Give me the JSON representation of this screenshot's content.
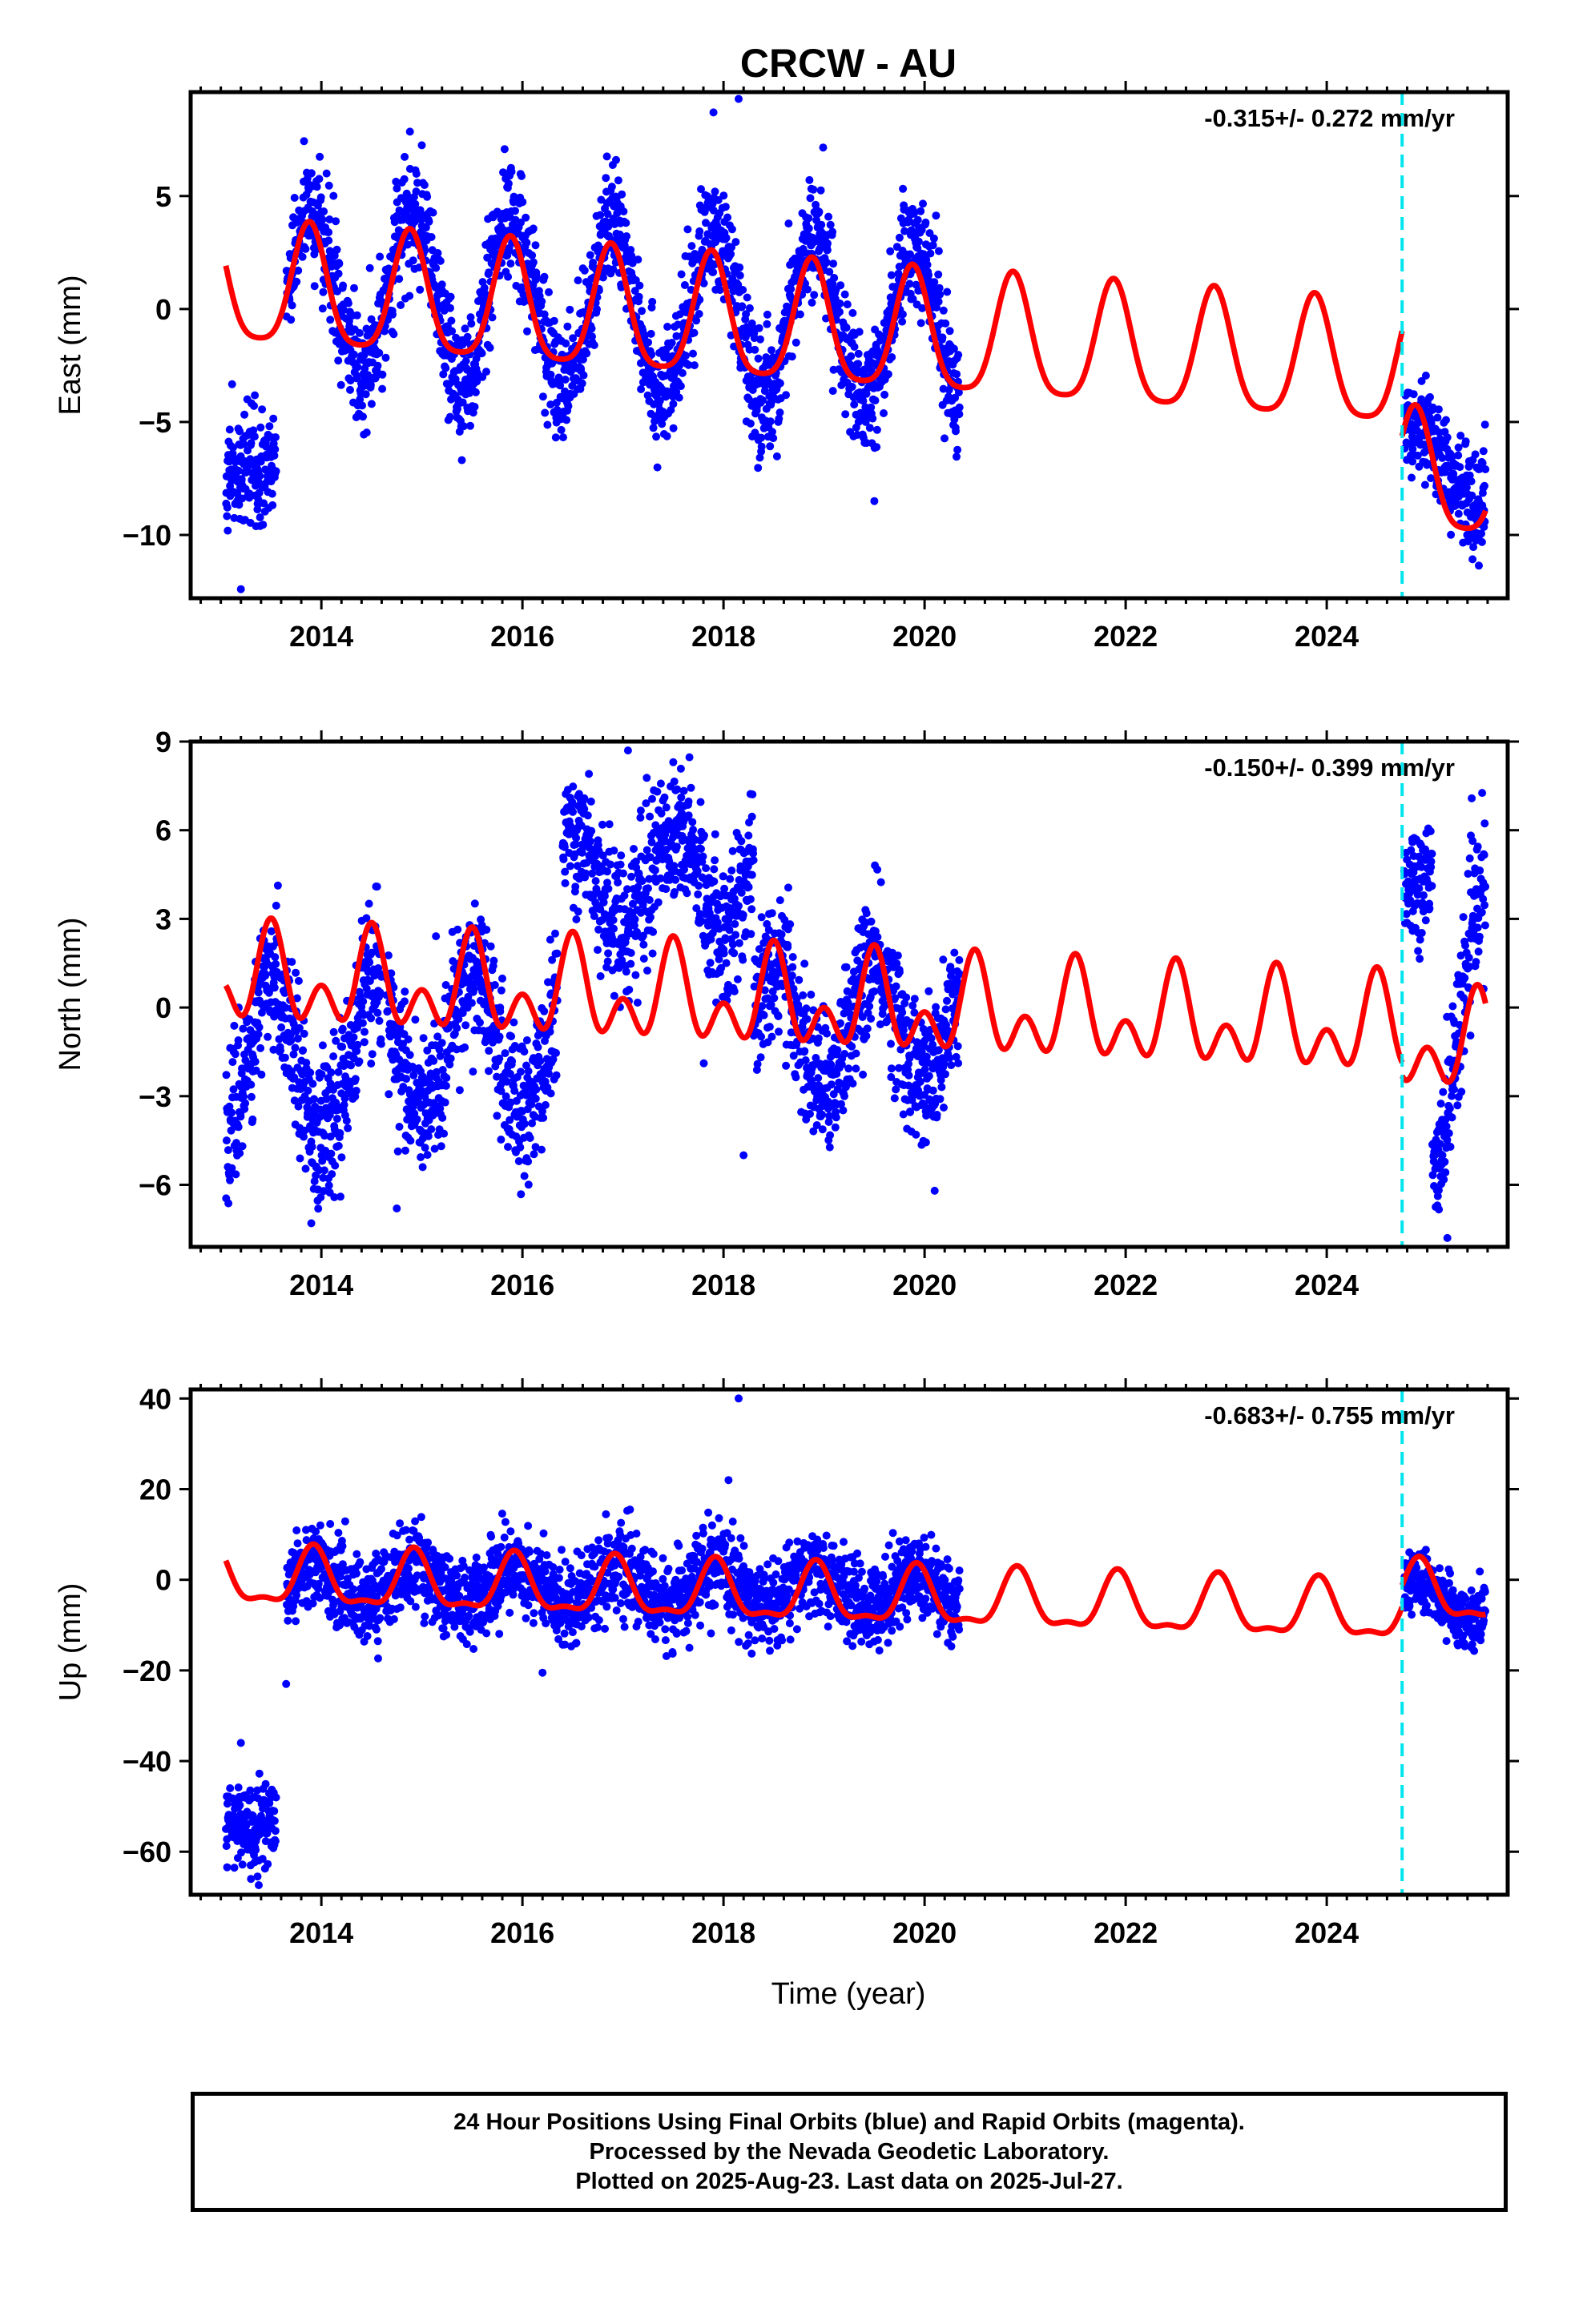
{
  "title": "CRCW - AU",
  "xlabel": "Time (year)",
  "footer": {
    "line1": "24 Hour Positions Using Final Orbits (blue) and Rapid Orbits (magenta).",
    "line2": "Processed by the Nevada Geodetic Laboratory.",
    "line3": "Plotted on 2025-Aug-23. Last data on 2025-Jul-27."
  },
  "colors": {
    "data": "#0000ff",
    "model": "#ff0000",
    "equipment_change": "#00e5ee",
    "frame": "#000000"
  },
  "chart_data": [
    {
      "type": "scatter",
      "component": "East",
      "ylabel": "East (mm)",
      "rate_text": "-0.315+/- 0.272 mm/yr",
      "xlim": [
        2012.7,
        2025.8
      ],
      "ylim": [
        -12.8,
        9.6
      ],
      "xticks": [
        2014,
        2016,
        2018,
        2020,
        2022,
        2024
      ],
      "yticks": [
        -10,
        -5,
        0,
        5
      ],
      "equipment_change_x": 2024.75,
      "data_segments": [
        {
          "x0": 2013.05,
          "x1": 2013.55,
          "mean": -7.2,
          "spread": 1.3,
          "amp": 0.0
        },
        {
          "x0": 2013.65,
          "x1": 2020.35,
          "mean": 0.8,
          "spread": 1.3,
          "amp": 3.6,
          "peak": 0.9,
          "trend": -0.25
        },
        {
          "x0": 2024.77,
          "x1": 2025.58,
          "mean": -5.9,
          "spread": 1.1,
          "amp": 1.3,
          "peak": 0.9,
          "trend": -2.0
        }
      ],
      "model": {
        "segments": [
          {
            "x0": 2013.05,
            "x1": 2024.75,
            "offset": 0.95,
            "trend": -0.315,
            "annual": 2.65,
            "annual_peak": 0.88,
            "semi": 0.55,
            "semi_peak": 0.88
          },
          {
            "x0": 2024.75,
            "x1": 2025.58,
            "offset": -3.7,
            "trend": -0.315,
            "annual": 2.65,
            "annual_peak": 0.88,
            "semi": 0.55,
            "semi_peak": 0.88
          }
        ]
      },
      "outliers": [
        [
          2018.15,
          9.3
        ],
        [
          2017.9,
          8.7
        ],
        [
          2019.5,
          -8.5
        ],
        [
          2013.2,
          -12.4
        ],
        [
          2017.5,
          -4.2
        ],
        [
          2014.5,
          -4.2
        ]
      ]
    },
    {
      "type": "scatter",
      "component": "North",
      "ylabel": "North (mm)",
      "rate_text": "-0.150+/- 0.399 mm/yr",
      "xlim": [
        2012.7,
        2025.8
      ],
      "ylim": [
        -8.1,
        9.0
      ],
      "xticks": [
        2014,
        2016,
        2018,
        2020,
        2022,
        2024
      ],
      "yticks": [
        -6,
        -3,
        0,
        3,
        6,
        9
      ],
      "equipment_change_x": 2024.75,
      "data_segments": [
        {
          "x0": 2013.05,
          "x1": 2014.6,
          "mean": -1.8,
          "spread": 1.2,
          "amp": 2.6,
          "peak": 0.52
        },
        {
          "x0": 2014.65,
          "x1": 2016.35,
          "mean": -1.2,
          "spread": 1.2,
          "amp": 2.4,
          "peak": 0.5
        },
        {
          "x0": 2016.4,
          "x1": 2018.3,
          "mean": 4.4,
          "spread": 1.2,
          "amp": 1.6,
          "peak": 0.5
        },
        {
          "x0": 2018.3,
          "x1": 2020.35,
          "mean": -0.6,
          "spread": 1.2,
          "amp": 2.0,
          "peak": 0.5
        },
        {
          "x0": 2024.77,
          "x1": 2025.05,
          "mean": 4.3,
          "spread": 1.0,
          "amp": 0.0
        },
        {
          "x0": 2025.05,
          "x1": 2025.58,
          "mean": -2.2,
          "spread": 1.2,
          "amp": 3.5,
          "peak": 0.55,
          "trend": 5.0
        }
      ],
      "model": {
        "segments": [
          {
            "x0": 2013.05,
            "x1": 2024.75,
            "offset": 0.95,
            "trend": -0.15,
            "annual": 1.1,
            "annual_peak": 0.5,
            "semi": 1.05,
            "semi_peak": 0.0
          },
          {
            "x0": 2024.75,
            "x1": 2025.58,
            "offset": 0.5,
            "trend": -0.15,
            "annual": 1.1,
            "annual_peak": 0.5,
            "semi": 1.05,
            "semi_peak": 0.0
          }
        ]
      },
      "outliers": [
        [
          2017.05,
          8.7
        ],
        [
          2017.5,
          8.3
        ],
        [
          2013.9,
          -7.3
        ],
        [
          2014.75,
          -6.8
        ],
        [
          2018.2,
          -5.0
        ],
        [
          2025.2,
          -7.8
        ],
        [
          2020.1,
          -6.2
        ]
      ]
    },
    {
      "type": "scatter",
      "component": "Up",
      "ylabel": "Up (mm)",
      "rate_text": "-0.683+/- 0.755 mm/yr",
      "xlim": [
        2012.7,
        2025.8
      ],
      "ylim": [
        -69.5,
        42
      ],
      "xticks": [
        2014,
        2016,
        2018,
        2020,
        2022,
        2024
      ],
      "yticks": [
        -60,
        -40,
        -20,
        0,
        20,
        40
      ],
      "equipment_change_x": 2024.75,
      "data_segments": [
        {
          "x0": 2013.05,
          "x1": 2013.55,
          "mean": -54.0,
          "spread": 4.5,
          "amp": 0.0
        },
        {
          "x0": 2013.65,
          "x1": 2020.35,
          "mean": -0.5,
          "spread": 4.6,
          "amp": 4.0,
          "peak": 0.92,
          "trend": -0.3
        },
        {
          "x0": 2024.77,
          "x1": 2025.58,
          "mean": -5.0,
          "spread": 3.3,
          "amp": 4.0,
          "peak": 0.92
        }
      ],
      "model": {
        "segments": [
          {
            "x0": 2013.05,
            "x1": 2024.75,
            "offset": 0.3,
            "trend": -0.683,
            "annual": 6.0,
            "annual_peak": 0.92,
            "semi": 2.2,
            "semi_peak": 0.42
          },
          {
            "x0": 2024.75,
            "x1": 2025.58,
            "offset": 5.1,
            "trend": -0.683,
            "annual": 6.0,
            "annual_peak": 0.92,
            "semi": 2.2,
            "semi_peak": 0.42
          }
        ]
      },
      "outliers": [
        [
          2018.15,
          40.0
        ],
        [
          2018.05,
          22.0
        ],
        [
          2013.65,
          -23.0
        ],
        [
          2016.2,
          -20.5
        ],
        [
          2013.3,
          -66.0
        ],
        [
          2013.2,
          -36.0
        ]
      ]
    }
  ]
}
